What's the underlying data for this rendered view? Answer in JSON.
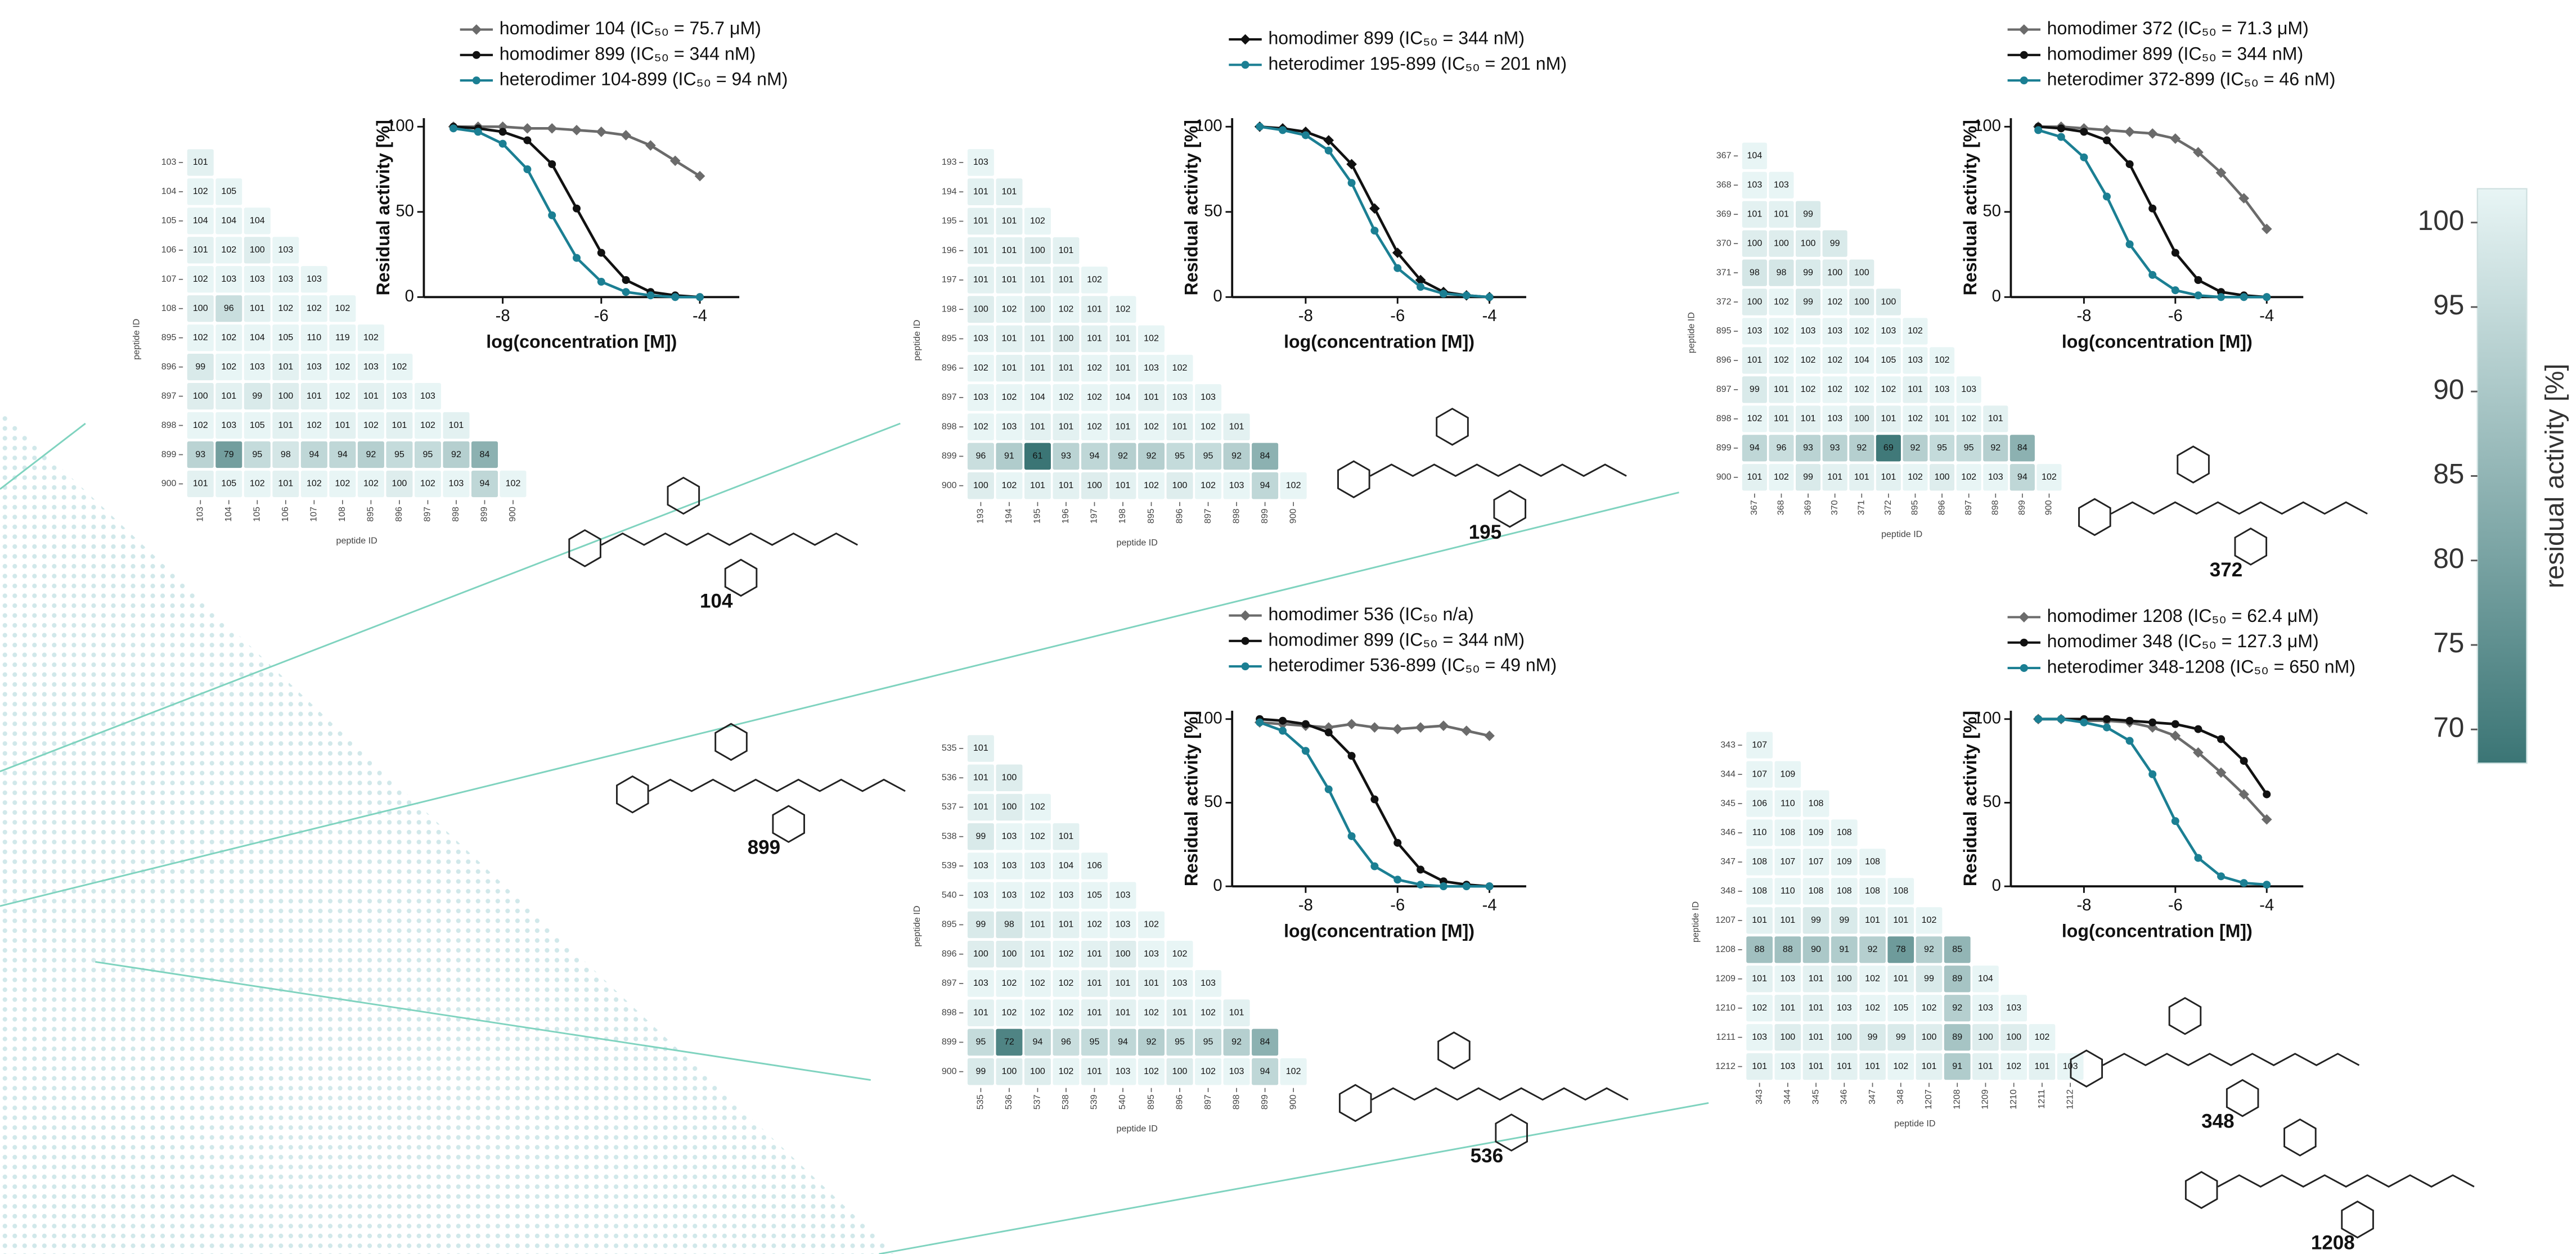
{
  "chart_data": [
    {
      "type": "line",
      "x_label": "log(concentration [M])",
      "y_label": "Residual activity [%]",
      "x": [
        -9,
        -8.5,
        -8,
        -7.5,
        -7,
        -6.5,
        -6,
        -5.5,
        -5,
        -4.5,
        -4
      ],
      "xlim": [
        -9.6,
        -3.2
      ],
      "xticks": [
        -8,
        -6,
        -4
      ],
      "ylim": [
        0,
        105
      ],
      "yticks": [
        0,
        50,
        100
      ],
      "series": [
        {
          "name": "homodimer 104 (IC₅₀ = 75.7 μM)",
          "color": "#6b6b6b",
          "marker": "diamond",
          "values": [
            100,
            100,
            100,
            99,
            99,
            98,
            97,
            95,
            89,
            80,
            71
          ]
        },
        {
          "name": "homodimer 899 (IC₅₀ = 344 nM)",
          "color": "#111111",
          "marker": "circle",
          "values": [
            100,
            99,
            97,
            92,
            78,
            52,
            26,
            10,
            3,
            1,
            0
          ]
        },
        {
          "name": "heterodimer 104-899 (IC₅₀ = 94 nM)",
          "color": "#1b7f93",
          "marker": "circle",
          "values": [
            99,
            97,
            90,
            75,
            48,
            23,
            9,
            3,
            1,
            0,
            0
          ]
        }
      ]
    },
    {
      "type": "line",
      "x_label": "log(concentration [M])",
      "y_label": "Residual activity [%]",
      "x": [
        -9,
        -8.5,
        -8,
        -7.5,
        -7,
        -6.5,
        -6,
        -5.5,
        -5,
        -4.5,
        -4
      ],
      "xlim": [
        -9.6,
        -3.2
      ],
      "xticks": [
        -8,
        -6,
        -4
      ],
      "ylim": [
        0,
        105
      ],
      "yticks": [
        0,
        50,
        100
      ],
      "series": [
        {
          "name": "homodimer 899 (IC₅₀ = 344 nM)",
          "color": "#111111",
          "marker": "diamond",
          "values": [
            100,
            99,
            97,
            92,
            78,
            52,
            26,
            10,
            3,
            1,
            0
          ]
        },
        {
          "name": "heterodimer 195-899 (IC₅₀ = 201 nM)",
          "color": "#1b7f93",
          "marker": "circle",
          "values": [
            100,
            98,
            95,
            86,
            67,
            39,
            17,
            6,
            2,
            1,
            0
          ]
        }
      ]
    },
    {
      "type": "line",
      "x_label": "log(concentration [M])",
      "y_label": "Residual activity [%]",
      "x": [
        -9,
        -8.5,
        -8,
        -7.5,
        -7,
        -6.5,
        -6,
        -5.5,
        -5,
        -4.5,
        -4
      ],
      "xlim": [
        -9.6,
        -3.2
      ],
      "xticks": [
        -8,
        -6,
        -4
      ],
      "ylim": [
        0,
        105
      ],
      "yticks": [
        0,
        50,
        100
      ],
      "series": [
        {
          "name": "homodimer 372 (IC₅₀ = 71.3 μM)",
          "color": "#6b6b6b",
          "marker": "diamond",
          "values": [
            100,
            100,
            99,
            98,
            97,
            96,
            93,
            85,
            73,
            58,
            40
          ]
        },
        {
          "name": "homodimer 899 (IC₅₀ = 344 nM)",
          "color": "#111111",
          "marker": "circle",
          "values": [
            100,
            99,
            97,
            92,
            78,
            52,
            26,
            10,
            3,
            1,
            0
          ]
        },
        {
          "name": "heterodimer 372-899 (IC₅₀ = 46 nM)",
          "color": "#1b7f93",
          "marker": "circle",
          "values": [
            98,
            94,
            82,
            59,
            31,
            13,
            4,
            1,
            0,
            0,
            0
          ]
        }
      ]
    },
    {
      "type": "line",
      "x_label": "log(concentration [M])",
      "y_label": "Residual activity [%]",
      "x": [
        -9,
        -8.5,
        -8,
        -7.5,
        -7,
        -6.5,
        -6,
        -5.5,
        -5,
        -4.5,
        -4
      ],
      "xlim": [
        -9.6,
        -3.2
      ],
      "xticks": [
        -8,
        -6,
        -4
      ],
      "ylim": [
        0,
        105
      ],
      "yticks": [
        0,
        50,
        100
      ],
      "series": [
        {
          "name": "homodimer 536 (IC₅₀ n/a)",
          "color": "#6b6b6b",
          "marker": "diamond",
          "values": [
            98,
            97,
            96,
            95,
            97,
            95,
            94,
            95,
            96,
            93,
            90
          ]
        },
        {
          "name": "homodimer 899 (IC₅₀ = 344 nM)",
          "color": "#111111",
          "marker": "circle",
          "values": [
            100,
            99,
            97,
            92,
            78,
            52,
            26,
            10,
            3,
            1,
            0
          ]
        },
        {
          "name": "heterodimer 536-899 (IC₅₀ = 49 nM)",
          "color": "#1b7f93",
          "marker": "circle",
          "values": [
            98,
            93,
            81,
            58,
            30,
            12,
            4,
            1,
            0,
            0,
            0
          ]
        }
      ]
    },
    {
      "type": "line",
      "x_label": "log(concentration [M])",
      "y_label": "Residual activity [%]",
      "x": [
        -9,
        -8.5,
        -8,
        -7.5,
        -7,
        -6.5,
        -6,
        -5.5,
        -5,
        -4.5,
        -4
      ],
      "xlim": [
        -9.6,
        -3.2
      ],
      "xticks": [
        -8,
        -6,
        -4
      ],
      "ylim": [
        0,
        105
      ],
      "yticks": [
        0,
        50,
        100
      ],
      "series": [
        {
          "name": "homodimer 1208 (IC₅₀ = 62.4 μM)",
          "color": "#6b6b6b",
          "marker": "diamond",
          "values": [
            100,
            100,
            99,
            99,
            98,
            95,
            90,
            80,
            68,
            55,
            40
          ]
        },
        {
          "name": "homodimer 348 (IC₅₀ = 127.3 μM)",
          "color": "#111111",
          "marker": "circle",
          "values": [
            100,
            100,
            100,
            100,
            99,
            98,
            97,
            94,
            88,
            75,
            55
          ]
        },
        {
          "name": "heterodimer 348-1208 (IC₅₀ = 650 nM)",
          "color": "#1b7f93",
          "marker": "circle",
          "values": [
            100,
            100,
            98,
            95,
            87,
            67,
            39,
            17,
            6,
            2,
            1
          ]
        }
      ]
    },
    {
      "type": "heatmap",
      "x_label": "peptide ID",
      "y_label": "peptide ID",
      "ids": [
        "103",
        "104",
        "105",
        "106",
        "107",
        "108",
        "895",
        "896",
        "897",
        "898",
        "899",
        "900"
      ],
      "values": [
        [
          101
        ],
        [
          102,
          105
        ],
        [
          104,
          104,
          104
        ],
        [
          101,
          102,
          100,
          103
        ],
        [
          102,
          103,
          103,
          103,
          103
        ],
        [
          100,
          96,
          101,
          102,
          102,
          102
        ],
        [
          102,
          102,
          104,
          105,
          110,
          119,
          102
        ],
        [
          99,
          102,
          103,
          101,
          103,
          102,
          103,
          102
        ],
        [
          100,
          101,
          99,
          100,
          101,
          102,
          101,
          103,
          103
        ],
        [
          102,
          103,
          105,
          101,
          102,
          101,
          102,
          101,
          102,
          101
        ],
        [
          93,
          79,
          95,
          98,
          94,
          94,
          92,
          95,
          95,
          92,
          84
        ],
        [
          101,
          105,
          102,
          101,
          102,
          102,
          102,
          100,
          102,
          103,
          94,
          102
        ]
      ]
    },
    {
      "type": "heatmap",
      "x_label": "peptide ID",
      "y_label": "peptide ID",
      "ids": [
        "193",
        "194",
        "195",
        "196",
        "197",
        "198",
        "895",
        "896",
        "897",
        "898",
        "899",
        "900"
      ],
      "values": [
        [
          103
        ],
        [
          101,
          101
        ],
        [
          101,
          101,
          102
        ],
        [
          101,
          101,
          100,
          101
        ],
        [
          101,
          101,
          101,
          101,
          102
        ],
        [
          100,
          102,
          100,
          102,
          101,
          102
        ],
        [
          103,
          101,
          101,
          100,
          101,
          101,
          102
        ],
        [
          102,
          101,
          101,
          101,
          102,
          101,
          103,
          102
        ],
        [
          103,
          102,
          104,
          102,
          102,
          104,
          101,
          103,
          103
        ],
        [
          102,
          103,
          101,
          101,
          102,
          101,
          102,
          101,
          102,
          101
        ],
        [
          96,
          91,
          61,
          93,
          94,
          92,
          92,
          95,
          95,
          92,
          84
        ],
        [
          100,
          102,
          101,
          101,
          100,
          101,
          102,
          100,
          102,
          103,
          94,
          102
        ]
      ]
    },
    {
      "type": "heatmap",
      "x_label": "peptide ID",
      "y_label": "peptide ID",
      "ids": [
        "367",
        "368",
        "369",
        "370",
        "371",
        "372",
        "895",
        "896",
        "897",
        "898",
        "899",
        "900"
      ],
      "values": [
        [
          104
        ],
        [
          103,
          103
        ],
        [
          101,
          101,
          99
        ],
        [
          100,
          100,
          100,
          99
        ],
        [
          98,
          98,
          99,
          100,
          100
        ],
        [
          100,
          102,
          99,
          102,
          100,
          100
        ],
        [
          103,
          102,
          103,
          103,
          102,
          103,
          102
        ],
        [
          101,
          102,
          102,
          102,
          104,
          105,
          103,
          102
        ],
        [
          99,
          101,
          102,
          102,
          102,
          102,
          101,
          103,
          103
        ],
        [
          102,
          101,
          101,
          103,
          100,
          101,
          102,
          101,
          102,
          101
        ],
        [
          94,
          96,
          93,
          93,
          92,
          69,
          92,
          95,
          95,
          92,
          84
        ],
        [
          101,
          102,
          99,
          101,
          101,
          101,
          102,
          100,
          102,
          103,
          94,
          102
        ]
      ]
    },
    {
      "type": "heatmap",
      "x_label": "peptide ID",
      "y_label": "peptide ID",
      "ids": [
        "535",
        "536",
        "537",
        "538",
        "539",
        "540",
        "895",
        "896",
        "897",
        "898",
        "899",
        "900"
      ],
      "values": [
        [
          101
        ],
        [
          101,
          100
        ],
        [
          101,
          100,
          102
        ],
        [
          99,
          103,
          102,
          101
        ],
        [
          103,
          103,
          103,
          104,
          106
        ],
        [
          103,
          103,
          102,
          103,
          105,
          103
        ],
        [
          99,
          98,
          101,
          101,
          102,
          103,
          102
        ],
        [
          100,
          100,
          101,
          102,
          101,
          100,
          103,
          102
        ],
        [
          103,
          102,
          102,
          102,
          101,
          101,
          101,
          103,
          103
        ],
        [
          101,
          102,
          102,
          102,
          101,
          101,
          102,
          101,
          102,
          101
        ],
        [
          95,
          72,
          94,
          96,
          95,
          94,
          92,
          95,
          95,
          92,
          84
        ],
        [
          99,
          100,
          100,
          102,
          101,
          103,
          102,
          100,
          102,
          103,
          94,
          102
        ]
      ]
    },
    {
      "type": "heatmap",
      "x_label": "peptide ID",
      "y_label": "peptide ID",
      "ids": [
        "343",
        "344",
        "345",
        "346",
        "347",
        "348",
        "1207",
        "1208",
        "1209",
        "1210",
        "1211",
        "1212"
      ],
      "values": [
        [
          107
        ],
        [
          107,
          109
        ],
        [
          106,
          110,
          108
        ],
        [
          110,
          108,
          109,
          108
        ],
        [
          108,
          107,
          107,
          109,
          108
        ],
        [
          108,
          110,
          108,
          108,
          108,
          108
        ],
        [
          101,
          101,
          99,
          99,
          101,
          101,
          102
        ],
        [
          88,
          88,
          90,
          91,
          92,
          78,
          92,
          85
        ],
        [
          101,
          103,
          101,
          100,
          102,
          101,
          99,
          89,
          104
        ],
        [
          102,
          101,
          101,
          103,
          102,
          105,
          102,
          92,
          103,
          103
        ],
        [
          103,
          100,
          101,
          100,
          99,
          99,
          100,
          89,
          100,
          100,
          102
        ],
        [
          101,
          103,
          101,
          101,
          101,
          102,
          101,
          91,
          101,
          102,
          101,
          103
        ]
      ]
    },
    {
      "type": "colorbar",
      "label": "residual activity [%]",
      "ylim": [
        68,
        102
      ],
      "yticks": [
        70,
        75,
        80,
        85,
        90,
        95,
        100
      ],
      "colors": [
        "#3b7575",
        "#e8f5f5"
      ]
    }
  ],
  "compounds": [
    "104",
    "195",
    "372",
    "899",
    "536",
    "348",
    "1208"
  ]
}
